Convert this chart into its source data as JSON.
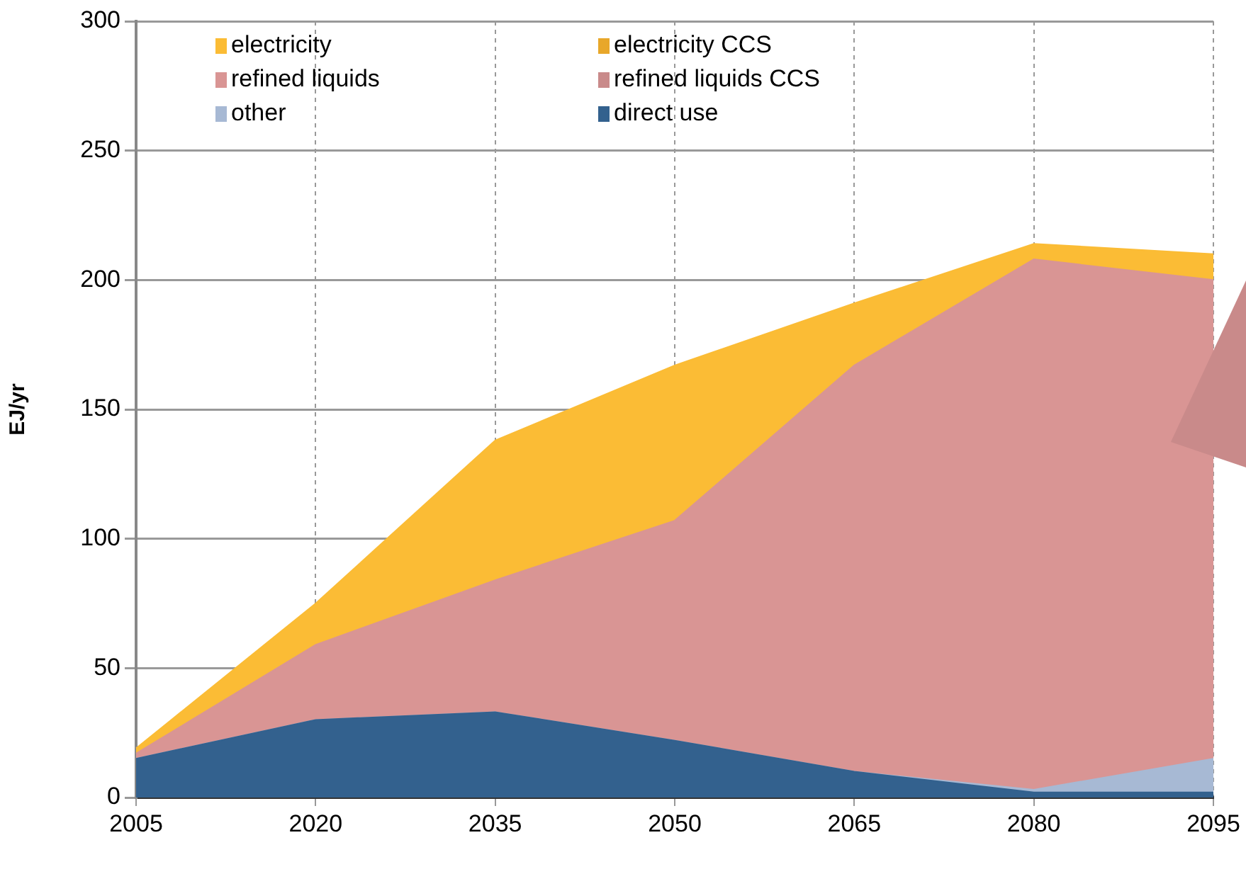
{
  "chart_data": {
    "type": "area",
    "stacked": true,
    "ylabel": "EJ/yr",
    "categories": [
      "2005",
      "2020",
      "2035",
      "2050",
      "2065",
      "2080",
      "2095"
    ],
    "ylim": [
      0,
      300
    ],
    "yticks": [
      0,
      50,
      100,
      150,
      200,
      250,
      300
    ],
    "grid": true,
    "legend": "top left",
    "series": [
      {
        "name": "direct use",
        "color": "#33618e",
        "values": [
          15,
          30,
          33,
          22,
          10,
          2,
          2
        ]
      },
      {
        "name": "other",
        "color": "#a7b9d4",
        "values": [
          0,
          0,
          0,
          0,
          0,
          1,
          13
        ]
      },
      {
        "name": "refined liquids CCS",
        "color": "#c98a8a",
        "values": [
          null,
          null,
          null,
          null,
          null,
          null,
          null
        ]
      },
      {
        "name": "refined liquids",
        "color": "#d99594",
        "values": [
          2,
          29,
          51,
          85,
          157,
          205,
          185
        ]
      },
      {
        "name": "electricity CCS",
        "color": "#e8a72a",
        "values": [
          null,
          null,
          null,
          null,
          null,
          null,
          null
        ]
      },
      {
        "name": "electricity",
        "color": "#fbbc35",
        "values": [
          2,
          16,
          54,
          60,
          24,
          6,
          10
        ]
      }
    ]
  }
}
